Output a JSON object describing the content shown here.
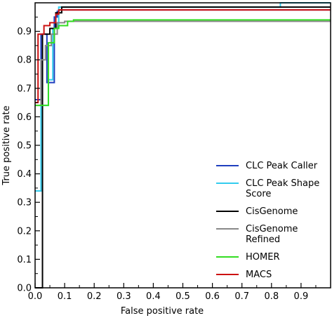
{
  "chart_data": {
    "type": "line",
    "title": "",
    "xlabel": "False positive rate",
    "ylabel": "True positive rate",
    "xlim": [
      0,
      1
    ],
    "ylim": [
      0,
      1
    ],
    "x_ticks": [
      0,
      0.1,
      0.2,
      0.3,
      0.4,
      0.5,
      0.6,
      0.7,
      0.8,
      0.9
    ],
    "x_tick_labels": [
      "0.0",
      "0.1",
      "0.2",
      "0.3",
      "0.4",
      "0.5",
      "0.6",
      "0.7",
      "0.8",
      "0.9"
    ],
    "y_ticks": [
      0,
      0.1,
      0.2,
      0.3,
      0.4,
      0.5,
      0.6,
      0.7,
      0.8,
      0.9
    ],
    "y_tick_labels": [
      "0.0",
      "0.1",
      "0.2",
      "0.3",
      "0.4",
      "0.5",
      "0.6",
      "0.7",
      "0.8",
      "0.9"
    ],
    "grid": false,
    "legend_position": "bottom-right",
    "series": [
      {
        "name": "CLC Peak Caller",
        "color": "#1f3fbf",
        "x": [
          0,
          0.02,
          0.02,
          0.04,
          0.04,
          0.05,
          0.05,
          0.065,
          0.065,
          0.075,
          0.075,
          0.08,
          0.08,
          1.0
        ],
        "y": [
          0.66,
          0.66,
          0.89,
          0.89,
          0.72,
          0.72,
          0.72,
          0.72,
          0.95,
          0.95,
          0.97,
          0.97,
          0.975,
          0.975
        ]
      },
      {
        "name": "CLC Peak Shape Score",
        "color": "#33ccee",
        "x": [
          0,
          0.02,
          0.02,
          0.045,
          0.045,
          0.06,
          0.06,
          0.08,
          0.08,
          0.83,
          0.83,
          1.0
        ],
        "y": [
          0.34,
          0.34,
          0.64,
          0.64,
          0.73,
          0.73,
          0.91,
          0.91,
          0.985,
          0.985,
          1.0,
          1.0
        ]
      },
      {
        "name": "CisGenome",
        "color": "#000000",
        "x": [
          0,
          0.02,
          0.02,
          0.025,
          0.025,
          0.05,
          0.05,
          0.07,
          0.07,
          0.09,
          0.09,
          1.0
        ],
        "y": [
          0.0,
          0.0,
          0.0,
          0.0,
          0.89,
          0.89,
          0.91,
          0.91,
          0.965,
          0.965,
          0.985,
          0.985
        ]
      },
      {
        "name": "CisGenome Refined",
        "color": "#888888",
        "x": [
          0,
          0.02,
          0.02,
          0.035,
          0.035,
          0.055,
          0.055,
          0.075,
          0.075,
          0.1,
          0.1,
          1.0
        ],
        "y": [
          0.64,
          0.64,
          0.8,
          0.8,
          0.85,
          0.85,
          0.89,
          0.89,
          0.93,
          0.93,
          0.935,
          0.935
        ]
      },
      {
        "name": "HOMER",
        "color": "#33dd22",
        "x": [
          0,
          0.02,
          0.02,
          0.045,
          0.045,
          0.065,
          0.065,
          0.08,
          0.08,
          0.11,
          0.11,
          0.13,
          0.13,
          1.0
        ],
        "y": [
          0.64,
          0.64,
          0.64,
          0.64,
          0.86,
          0.86,
          0.91,
          0.91,
          0.92,
          0.92,
          0.935,
          0.935,
          0.94,
          0.94
        ]
      },
      {
        "name": "MACS",
        "color": "#cc1111",
        "x": [
          0,
          0.01,
          0.01,
          0.03,
          0.03,
          0.05,
          0.05,
          0.07,
          0.07,
          0.08,
          0.08,
          1.0
        ],
        "y": [
          0.65,
          0.65,
          0.89,
          0.89,
          0.92,
          0.92,
          0.93,
          0.93,
          0.96,
          0.96,
          0.975,
          0.975
        ]
      }
    ],
    "legend": [
      {
        "label_lines": [
          "CLC Peak Caller"
        ],
        "color": "#1f3fbf"
      },
      {
        "label_lines": [
          "CLC Peak Shape",
          "Score"
        ],
        "color": "#33ccee"
      },
      {
        "label_lines": [
          "CisGenome"
        ],
        "color": "#000000"
      },
      {
        "label_lines": [
          "CisGenome",
          "Refined"
        ],
        "color": "#888888"
      },
      {
        "label_lines": [
          "HOMER"
        ],
        "color": "#33dd22"
      },
      {
        "label_lines": [
          "MACS"
        ],
        "color": "#cc1111"
      }
    ]
  }
}
